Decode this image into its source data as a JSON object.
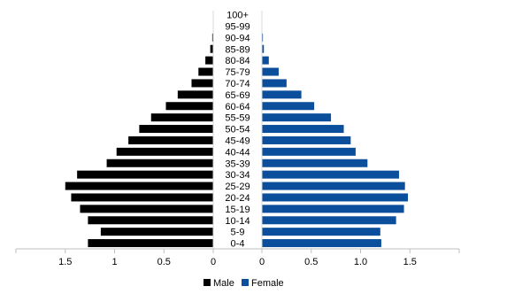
{
  "chart_data": {
    "type": "bar",
    "orientation": "horizontal-population-pyramid",
    "title": "",
    "xlabel": "",
    "ylabel": "",
    "categories": [
      "0-4",
      "5-9",
      "10-14",
      "15-19",
      "20-24",
      "25-29",
      "30-34",
      "35-39",
      "40-44",
      "45-49",
      "50-54",
      "55-59",
      "60-64",
      "65-69",
      "70-74",
      "75-79",
      "80-84",
      "85-89",
      "90-94",
      "95-99",
      "100+"
    ],
    "series": [
      {
        "name": "Male",
        "color": "#000000",
        "values": [
          1.27,
          1.14,
          1.27,
          1.35,
          1.44,
          1.5,
          1.38,
          1.08,
          0.98,
          0.86,
          0.75,
          0.63,
          0.48,
          0.36,
          0.22,
          0.15,
          0.08,
          0.03,
          0.01,
          0.0,
          0.0
        ]
      },
      {
        "name": "Female",
        "color": "#0b4f9c",
        "values": [
          1.21,
          1.2,
          1.36,
          1.44,
          1.48,
          1.45,
          1.39,
          1.07,
          0.95,
          0.9,
          0.83,
          0.7,
          0.53,
          0.4,
          0.25,
          0.17,
          0.07,
          0.02,
          0.01,
          0.0,
          0.0
        ]
      }
    ],
    "xlim_each_side": [
      0,
      2
    ],
    "ticks_left": [
      "1.5",
      "1",
      "0.5",
      "0"
    ],
    "ticks_left_values": [
      1.5,
      1,
      0.5,
      0
    ],
    "ticks_right": [
      "0",
      "0.5",
      "1.0",
      "1.5"
    ],
    "ticks_right_values": [
      0,
      0.5,
      1.0,
      1.5
    ],
    "grid": false,
    "legend_position": "bottom"
  }
}
